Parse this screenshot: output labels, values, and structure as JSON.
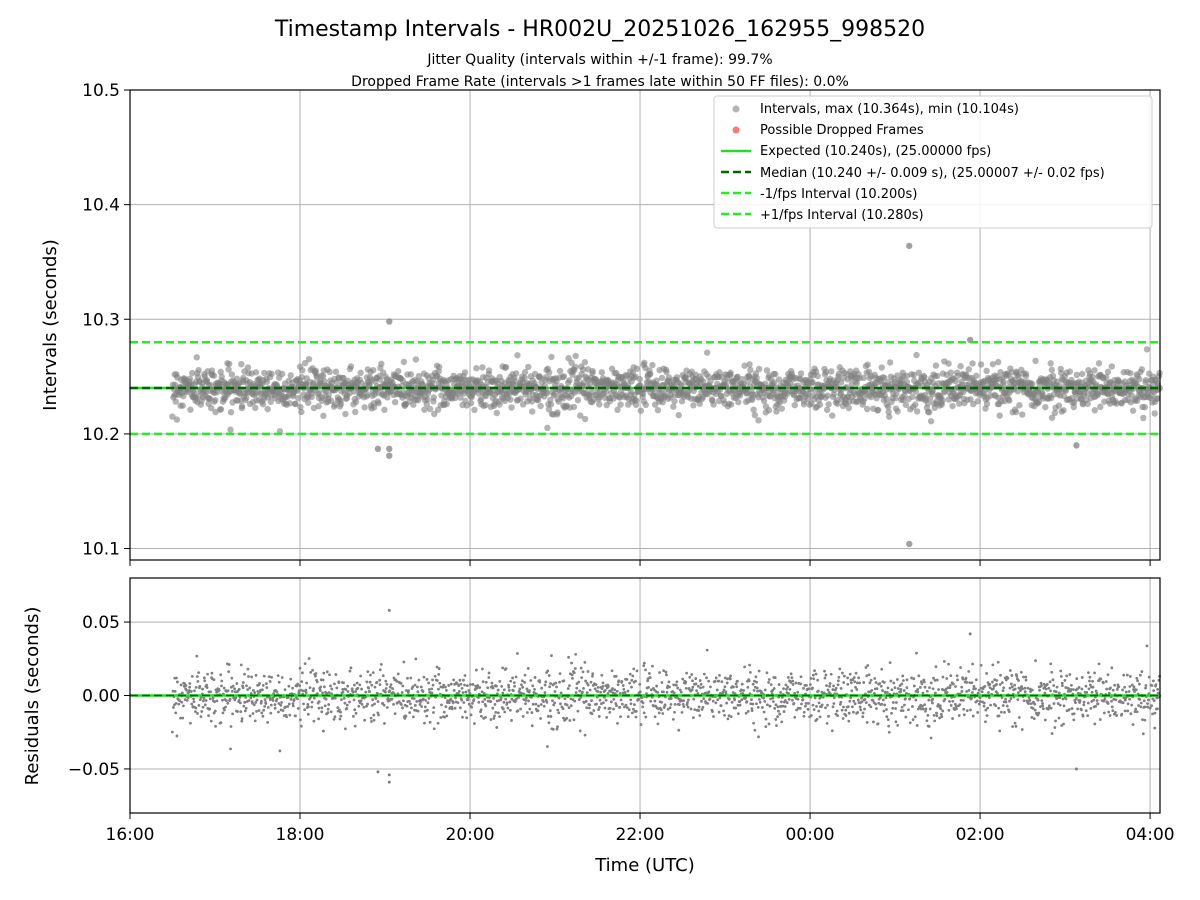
{
  "figure": {
    "title": "Timestamp Intervals - HR002U_20251026_162955_998520",
    "subtitle_1": "Jitter Quality (intervals within +/-1 frame): 99.7%",
    "subtitle_2": "Dropped Frame Rate (intervals >1 frames late within 50 FF files): 0.0%"
  },
  "colors": {
    "points": "#808080",
    "dropped": "#ff5555",
    "expected": "#22dd22",
    "median": "#006400",
    "bounds": "#22ee22",
    "grid": "#b0b0b0"
  },
  "chart_data": [
    {
      "type": "scatter",
      "ylabel": "Intervals (seconds)",
      "xlim": [
        "16:00",
        "04:07"
      ],
      "ylim": [
        10.09,
        10.5
      ],
      "yticks": [
        "10.1",
        "10.2",
        "10.3",
        "10.4",
        "10.5"
      ],
      "xticks": [
        "16:00",
        "18:00",
        "20:00",
        "22:00",
        "00:00",
        "02:00",
        "04:00"
      ],
      "grid": true,
      "legend_position": "top-right",
      "legend": [
        "Intervals, max (10.364s), min (10.104s)",
        "Possible Dropped Frames",
        "Expected (10.240s), (25.00000 fps)",
        "Median (10.240 +/- 0.009 s), (25.00007 +/- 0.02 fps)",
        "-1/fps Interval (10.200s)",
        "+1/fps Interval (10.280s)"
      ],
      "series": [
        {
          "name": "Intervals",
          "summary": {
            "x_start": "16:30",
            "x_end": "04:07",
            "center": 10.24,
            "spread_sd": 0.009,
            "max": 10.364,
            "min": 10.104
          },
          "notable_points": [
            {
              "x": "01:10",
              "y": 10.364
            },
            {
              "x": "01:10",
              "y": 10.104
            },
            {
              "x": "19:03",
              "y": 10.298
            },
            {
              "x": "18:55",
              "y": 10.187
            },
            {
              "x": "19:03",
              "y": 10.181
            },
            {
              "x": "19:03",
              "y": 10.187
            },
            {
              "x": "03:08",
              "y": 10.19
            },
            {
              "x": "01:53",
              "y": 10.282
            }
          ]
        },
        {
          "name": "Possible Dropped Frames",
          "points": []
        }
      ],
      "reference_lines": [
        {
          "name": "Expected",
          "y": 10.24
        },
        {
          "name": "Median",
          "y": 10.24
        },
        {
          "name": "-1/fps Interval",
          "y": 10.2
        },
        {
          "name": "+1/fps Interval",
          "y": 10.28
        }
      ]
    },
    {
      "type": "scatter",
      "xlabel": "Time (UTC)",
      "ylabel": "Residuals (seconds)",
      "xlim": [
        "16:00",
        "04:07"
      ],
      "ylim": [
        -0.08,
        0.08
      ],
      "yticks": [
        "0.05",
        "0.00",
        "−0.05"
      ],
      "xticks": [
        "16:00",
        "18:00",
        "20:00",
        "22:00",
        "00:00",
        "02:00",
        "04:00"
      ],
      "grid": true,
      "series": [
        {
          "name": "Residuals",
          "summary": {
            "x_start": "16:30",
            "x_end": "04:07",
            "center": 0.0,
            "spread_sd": 0.012
          },
          "notable_points": [
            {
              "x": "19:03",
              "y": 0.058
            },
            {
              "x": "18:55",
              "y": -0.052
            },
            {
              "x": "19:03",
              "y": -0.059
            },
            {
              "x": "19:03",
              "y": -0.054
            },
            {
              "x": "03:08",
              "y": -0.05
            },
            {
              "x": "01:53",
              "y": 0.042
            }
          ]
        }
      ],
      "reference_lines": [
        {
          "name": "Zero",
          "y": 0.0
        }
      ]
    }
  ]
}
